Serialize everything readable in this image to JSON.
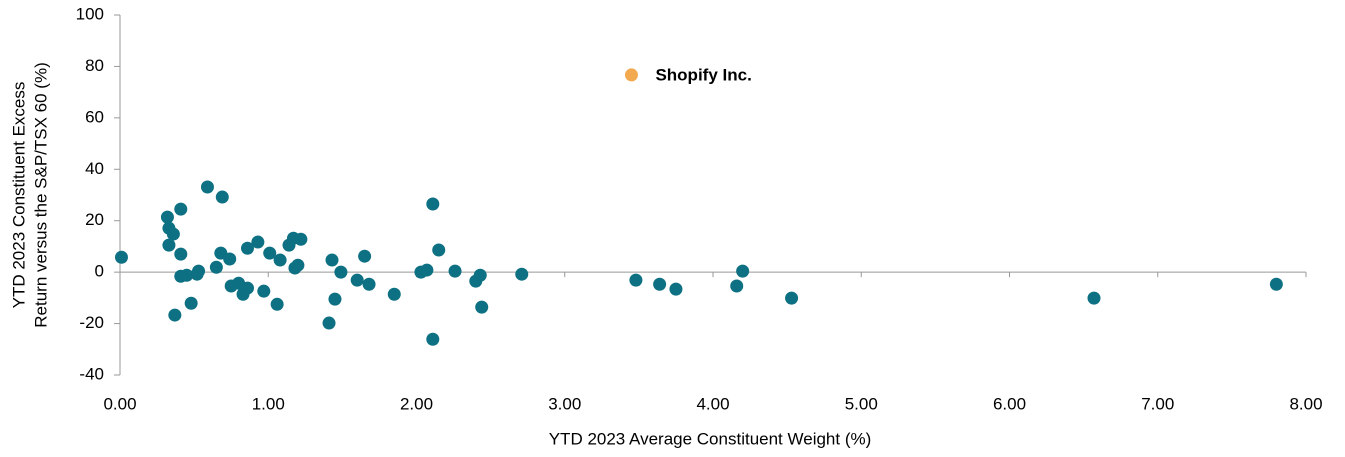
{
  "chart_data": {
    "type": "scatter",
    "xlabel": "YTD 2023 Average Constituent Weight (%)",
    "ylabel": [
      "YTD 2023 Constituent Excess",
      "Return versus the S&P/TSX 60 (%)"
    ],
    "xlim": [
      0,
      8
    ],
    "ylim": [
      -40,
      100
    ],
    "xticks": [
      {
        "value": 0,
        "label": "0.00"
      },
      {
        "value": 1,
        "label": "1.00"
      },
      {
        "value": 2,
        "label": "2.00"
      },
      {
        "value": 3,
        "label": "3.00"
      },
      {
        "value": 4,
        "label": "4.00"
      },
      {
        "value": 5,
        "label": "5.00"
      },
      {
        "value": 6,
        "label": "6.00"
      },
      {
        "value": 7,
        "label": "7.00"
      },
      {
        "value": 8,
        "label": "8.00"
      }
    ],
    "yticks": [
      -40,
      -20,
      0,
      20,
      40,
      60,
      80,
      100
    ],
    "series": [
      {
        "color": "#0e7183",
        "x": [
          0.01,
          0.32,
          0.33,
          0.36,
          0.33,
          0.41,
          0.59,
          0.69,
          0.41,
          0.41,
          0.45,
          0.52,
          0.53,
          0.48,
          0.37,
          0.65,
          0.68,
          0.74,
          0.75,
          0.8,
          0.83,
          0.86,
          0.86,
          0.93,
          0.97,
          1.01,
          1.06,
          1.08,
          1.14,
          1.17,
          1.22,
          1.18,
          1.2,
          1.41,
          1.43,
          1.45,
          1.49,
          1.6,
          1.65,
          1.68,
          1.85,
          2.03,
          2.07,
          2.11,
          2.11,
          2.15,
          2.26,
          2.4,
          2.43,
          2.44,
          2.71,
          3.48,
          3.64,
          3.75,
          4.16,
          4.2,
          4.53,
          6.57,
          7.8
        ],
        "values": [
          5.8,
          21.4,
          17.1,
          14.8,
          10.5,
          24.5,
          33.1,
          29.2,
          7.0,
          -1.6,
          -1.2,
          -0.8,
          0.4,
          -12.1,
          -16.7,
          1.9,
          7.4,
          5.1,
          -5.4,
          -4.3,
          -8.6,
          -6.2,
          9.3,
          11.7,
          -7.4,
          7.4,
          -12.5,
          4.7,
          10.5,
          13.2,
          12.8,
          1.6,
          2.7,
          -19.8,
          4.7,
          -10.5,
          0,
          -3.1,
          6.2,
          -4.7,
          -8.6,
          0,
          0.8,
          26.5,
          -26.1,
          8.6,
          0.4,
          -3.5,
          -1.2,
          -13.6,
          -0.8,
          -3.1,
          -4.7,
          -6.6,
          -5.4,
          0.4,
          -10.1,
          -10.1,
          -4.7
        ]
      },
      {
        "name": "Shopify Inc.",
        "color": "#f2a950",
        "x": [
          3.45
        ],
        "values": [
          76.7
        ]
      }
    ]
  }
}
